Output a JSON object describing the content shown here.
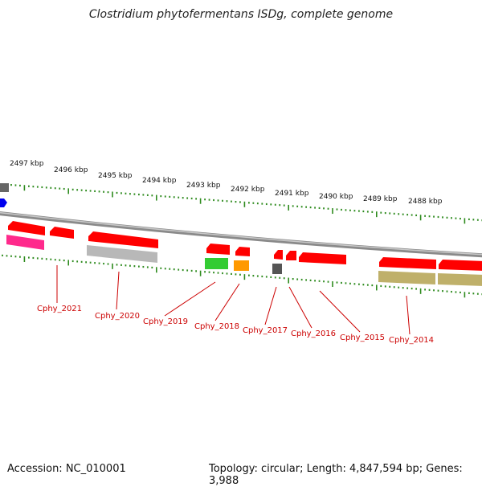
{
  "title": "Clostridium phytofermentans ISDg, complete genome",
  "accession": "Accession: NC_010001",
  "topology": "Topology: circular; Length: 4,847,594 bp; Genes: 3,988",
  "colors": {
    "backbone": "#8a8a8a",
    "tick": "#2e8b1e",
    "gene_forward": "#ff0000",
    "label": "#cc0000",
    "pink": "#ff2a8c",
    "gray_feature": "#b8b8b8",
    "green_feature": "#33cc33",
    "orange_feature": "#ff9900",
    "dark_feature": "#555555",
    "olive_feature": "#bfb06a",
    "blue_feature": "#0000ee"
  },
  "scale_labels": [
    "2497 kbp",
    "2496 kbp",
    "2495 kbp",
    "2494 kbp",
    "2493 kbp",
    "2492 kbp",
    "2491 kbp",
    "2490 kbp",
    "2489 kbp",
    "2488 kbp"
  ],
  "gene_labels": [
    "Cphy_2021",
    "Cphy_2020",
    "Cphy_2019",
    "Cphy_2018",
    "Cphy_2017",
    "Cphy_2016",
    "Cphy_2015",
    "Cphy_2014"
  ]
}
